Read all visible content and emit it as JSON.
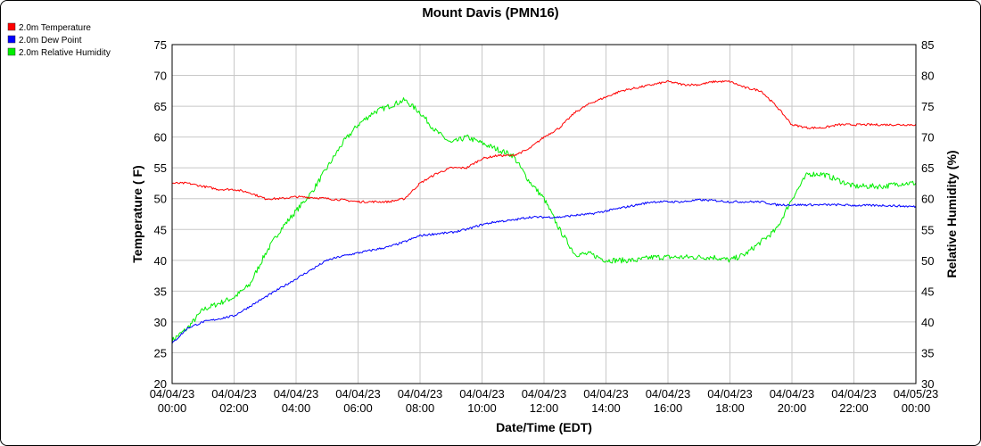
{
  "chart_data": {
    "type": "line",
    "title": "Mount Davis (PMN16)",
    "xlabel": "Date/Time (EDT)",
    "ylabel_left": "Temperature ( F)",
    "ylabel_right": "Relative Humidity (%)",
    "ylim_left": [
      20,
      75
    ],
    "ylim_right": [
      30,
      85
    ],
    "yticks_left": [
      "20",
      "25",
      "30",
      "35",
      "40",
      "45",
      "50",
      "55",
      "60",
      "65",
      "70",
      "75"
    ],
    "yticks_right": [
      "30",
      "35",
      "40",
      "45",
      "50",
      "55",
      "60",
      "65",
      "70",
      "75",
      "80",
      "85"
    ],
    "xlim_hours": [
      0,
      24
    ],
    "x_ticks": [
      {
        "date": "04/04/23",
        "time": "00:00"
      },
      {
        "date": "04/04/23",
        "time": "02:00"
      },
      {
        "date": "04/04/23",
        "time": "04:00"
      },
      {
        "date": "04/04/23",
        "time": "06:00"
      },
      {
        "date": "04/04/23",
        "time": "08:00"
      },
      {
        "date": "04/04/23",
        "time": "10:00"
      },
      {
        "date": "04/04/23",
        "time": "12:00"
      },
      {
        "date": "04/04/23",
        "time": "14:00"
      },
      {
        "date": "04/04/23",
        "time": "16:00"
      },
      {
        "date": "04/04/23",
        "time": "18:00"
      },
      {
        "date": "04/04/23",
        "time": "20:00"
      },
      {
        "date": "04/04/23",
        "time": "22:00"
      },
      {
        "date": "04/05/23",
        "time": "00:00"
      }
    ],
    "grid": true,
    "legend_position": "top-left",
    "series": [
      {
        "name": "2.0m Temperature",
        "color": "#ff0000",
        "axis": "left",
        "x": [
          0,
          0.5,
          1,
          1.5,
          2,
          2.5,
          3,
          3.5,
          4,
          4.5,
          5,
          5.5,
          6,
          6.5,
          7,
          7.5,
          8,
          8.5,
          9,
          9.5,
          10,
          10.5,
          11,
          11.5,
          12,
          12.5,
          13,
          13.5,
          14,
          14.5,
          15,
          15.5,
          16,
          16.5,
          17,
          17.5,
          18,
          18.5,
          19,
          19.5,
          20,
          20.5,
          21,
          21.5,
          22,
          22.5,
          23,
          23.5,
          24
        ],
        "y": [
          52.5,
          52.5,
          52,
          51.5,
          51.5,
          51,
          50,
          50,
          50.3,
          50.2,
          50,
          49.8,
          49.5,
          49.5,
          49.5,
          50,
          52.5,
          54,
          55,
          55,
          56.5,
          57,
          57,
          58,
          60,
          61.5,
          64,
          65.5,
          66.5,
          67.5,
          68,
          68.5,
          69,
          68.5,
          68.5,
          69,
          69,
          68,
          67.5,
          65,
          62,
          61.5,
          61.5,
          62,
          62,
          62,
          62,
          62,
          62
        ]
      },
      {
        "name": "2.0m Dew Point",
        "color": "#0000ff",
        "axis": "left",
        "x": [
          0,
          0.5,
          1,
          1.5,
          2,
          2.5,
          3,
          3.5,
          4,
          4.5,
          5,
          5.5,
          6,
          6.5,
          7,
          7.5,
          8,
          8.5,
          9,
          9.5,
          10,
          10.5,
          11,
          11.5,
          12,
          12.5,
          13,
          13.5,
          14,
          14.5,
          15,
          15.5,
          16,
          16.5,
          17,
          17.5,
          18,
          18.5,
          19,
          19.5,
          20,
          20.5,
          21,
          21.5,
          22,
          22.5,
          23,
          23.5,
          24
        ],
        "y": [
          26.5,
          29,
          30,
          30.5,
          31,
          32.5,
          34,
          35.5,
          37,
          38.5,
          40,
          40.7,
          41.2,
          41.7,
          42.2,
          43,
          44,
          44.3,
          44.5,
          45,
          45.8,
          46.3,
          46.5,
          47,
          47,
          47,
          47.3,
          47.5,
          48,
          48.5,
          49,
          49.5,
          49.5,
          49.5,
          49.8,
          49.7,
          49.5,
          49.5,
          49.5,
          49,
          49,
          49,
          49,
          49,
          48.9,
          48.9,
          48.9,
          48.8,
          48.7
        ]
      },
      {
        "name": "2.0m Relative Humidity",
        "color": "#00ee00",
        "axis": "right",
        "x": [
          0,
          0.5,
          1,
          1.5,
          2,
          2.5,
          3,
          3.5,
          4,
          4.5,
          5,
          5.5,
          6,
          6.5,
          7,
          7.5,
          8,
          8.5,
          9,
          9.5,
          10,
          10.5,
          11,
          11.5,
          12,
          12.5,
          13,
          13.5,
          14,
          14.5,
          15,
          15.5,
          16,
          16.5,
          17,
          17.5,
          18,
          18.5,
          19,
          19.5,
          20,
          20.5,
          21,
          21.5,
          22,
          22.5,
          23,
          23.5,
          24
        ],
        "y": [
          37,
          39,
          42,
          43,
          44,
          46,
          51,
          55,
          58,
          61,
          65,
          69,
          72,
          74,
          75,
          76,
          74,
          71,
          69,
          70,
          69,
          68,
          67,
          63,
          60,
          55,
          51,
          51,
          50,
          50,
          50,
          50.5,
          50.5,
          50.5,
          50.5,
          50.5,
          50,
          51,
          53,
          55,
          60,
          64,
          64,
          63,
          62,
          62,
          62,
          62.5,
          62.5
        ]
      }
    ]
  }
}
